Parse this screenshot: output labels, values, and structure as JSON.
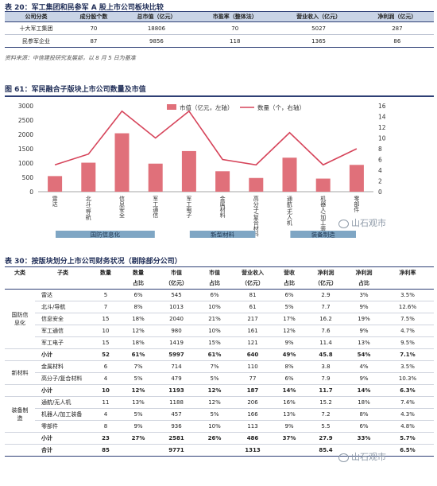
{
  "table20": {
    "title": "表 20：军工集团和民参军 A 股上市公司板块比较",
    "headers": [
      "公司分类",
      "成分股个数",
      "总市值（亿元）",
      "市盈率（整体法）",
      "营业收入（亿元）",
      "净利润（亿元）"
    ],
    "rows": [
      [
        "十大军工集团",
        "70",
        "18806",
        "70",
        "5027",
        "287"
      ],
      [
        "民参军企业",
        "87",
        "9856",
        "118",
        "1365",
        "86"
      ]
    ],
    "source": "资料来源：中信建投研究发展部，以 8 月 5 日为基准"
  },
  "chart_title": "图 61：军民融合子版块上市公司数量及市值",
  "chart_data": {
    "type": "bar",
    "categories": [
      "雷达",
      "北斗/导航",
      "信息安全",
      "军工通信",
      "军工电子",
      "金属材料",
      "高分子/复合材料",
      "通航/无人机",
      "机器人/加工装备",
      "零部件"
    ],
    "series": [
      {
        "name": "市值（亿元，左轴）",
        "type": "bar",
        "axis": "left",
        "values": [
          545,
          1013,
          2040,
          980,
          1419,
          714,
          479,
          1188,
          457,
          936
        ]
      },
      {
        "name": "数量（个，右轴）",
        "type": "line",
        "axis": "right",
        "values": [
          5,
          7,
          15,
          10,
          15,
          6,
          5,
          11,
          5,
          8
        ]
      }
    ],
    "left_ylim": [
      0,
      3000
    ],
    "left_ticks": [
      "0",
      "500",
      "1000",
      "1500",
      "2000",
      "2500",
      "3000"
    ],
    "right_ylim": [
      0,
      16
    ],
    "right_ticks": [
      "0",
      "2",
      "4",
      "6",
      "8",
      "10",
      "12",
      "14",
      "16"
    ],
    "groups": [
      "国防信息化",
      "新型材料",
      "装备制造"
    ],
    "bar_color": "#e0707a",
    "line_color": "#d6445a",
    "legend_position": "top-center"
  },
  "table30": {
    "title": "表 30：按版块划分上市公司财务状况（剔除部分公司）",
    "headers1": [
      "大类",
      "子类",
      "数量",
      "数量",
      "市值",
      "市值",
      "营业收入",
      "营收",
      "净利润",
      "净利润",
      "净利率"
    ],
    "headers2": [
      "",
      "",
      "",
      "占比",
      "（亿元）",
      "占比",
      "（亿元）",
      "占比",
      "（亿元）",
      "占比",
      ""
    ],
    "groups": [
      {
        "name": "国防信息化",
        "rows": [
          [
            "雷达",
            "5",
            "6%",
            "545",
            "6%",
            "81",
            "6%",
            "2.9",
            "3%",
            "3.5%"
          ],
          [
            "北斗/导航",
            "7",
            "8%",
            "1013",
            "10%",
            "61",
            "5%",
            "7.7",
            "9%",
            "12.6%"
          ],
          [
            "信息安全",
            "15",
            "18%",
            "2040",
            "21%",
            "217",
            "17%",
            "16.2",
            "19%",
            "7.5%"
          ],
          [
            "军工通信",
            "10",
            "12%",
            "980",
            "10%",
            "161",
            "12%",
            "7.6",
            "9%",
            "4.7%"
          ],
          [
            "军工电子",
            "15",
            "18%",
            "1419",
            "15%",
            "121",
            "9%",
            "11.4",
            "13%",
            "9.5%"
          ]
        ],
        "subtotal": [
          "小计",
          "52",
          "61%",
          "5997",
          "61%",
          "640",
          "49%",
          "45.8",
          "54%",
          "7.1%"
        ]
      },
      {
        "name": "新材料",
        "rows": [
          [
            "金属材料",
            "6",
            "7%",
            "714",
            "7%",
            "110",
            "8%",
            "3.8",
            "4%",
            "3.5%"
          ],
          [
            "高分子/复合材料",
            "4",
            "5%",
            "479",
            "5%",
            "77",
            "6%",
            "7.9",
            "9%",
            "10.3%"
          ]
        ],
        "subtotal": [
          "小计",
          "10",
          "12%",
          "1193",
          "12%",
          "187",
          "14%",
          "11.7",
          "14%",
          "6.3%"
        ]
      },
      {
        "name": "装备制造",
        "rows": [
          [
            "通航/无人机",
            "11",
            "13%",
            "1188",
            "12%",
            "206",
            "16%",
            "15.2",
            "18%",
            "7.4%"
          ],
          [
            "机器人/加工装备",
            "4",
            "5%",
            "457",
            "5%",
            "166",
            "13%",
            "7.2",
            "8%",
            "4.3%"
          ],
          [
            "零部件",
            "8",
            "9%",
            "936",
            "10%",
            "113",
            "9%",
            "5.5",
            "6%",
            "4.8%"
          ]
        ],
        "subtotal": [
          "小计",
          "23",
          "27%",
          "2581",
          "26%",
          "486",
          "37%",
          "27.9",
          "33%",
          "5.7%"
        ]
      }
    ],
    "grand_total": [
      "合计",
      "85",
      "",
      "9771",
      "",
      "1313",
      "",
      "85.4",
      "",
      "6.5%"
    ]
  },
  "watermark": "山石观市"
}
